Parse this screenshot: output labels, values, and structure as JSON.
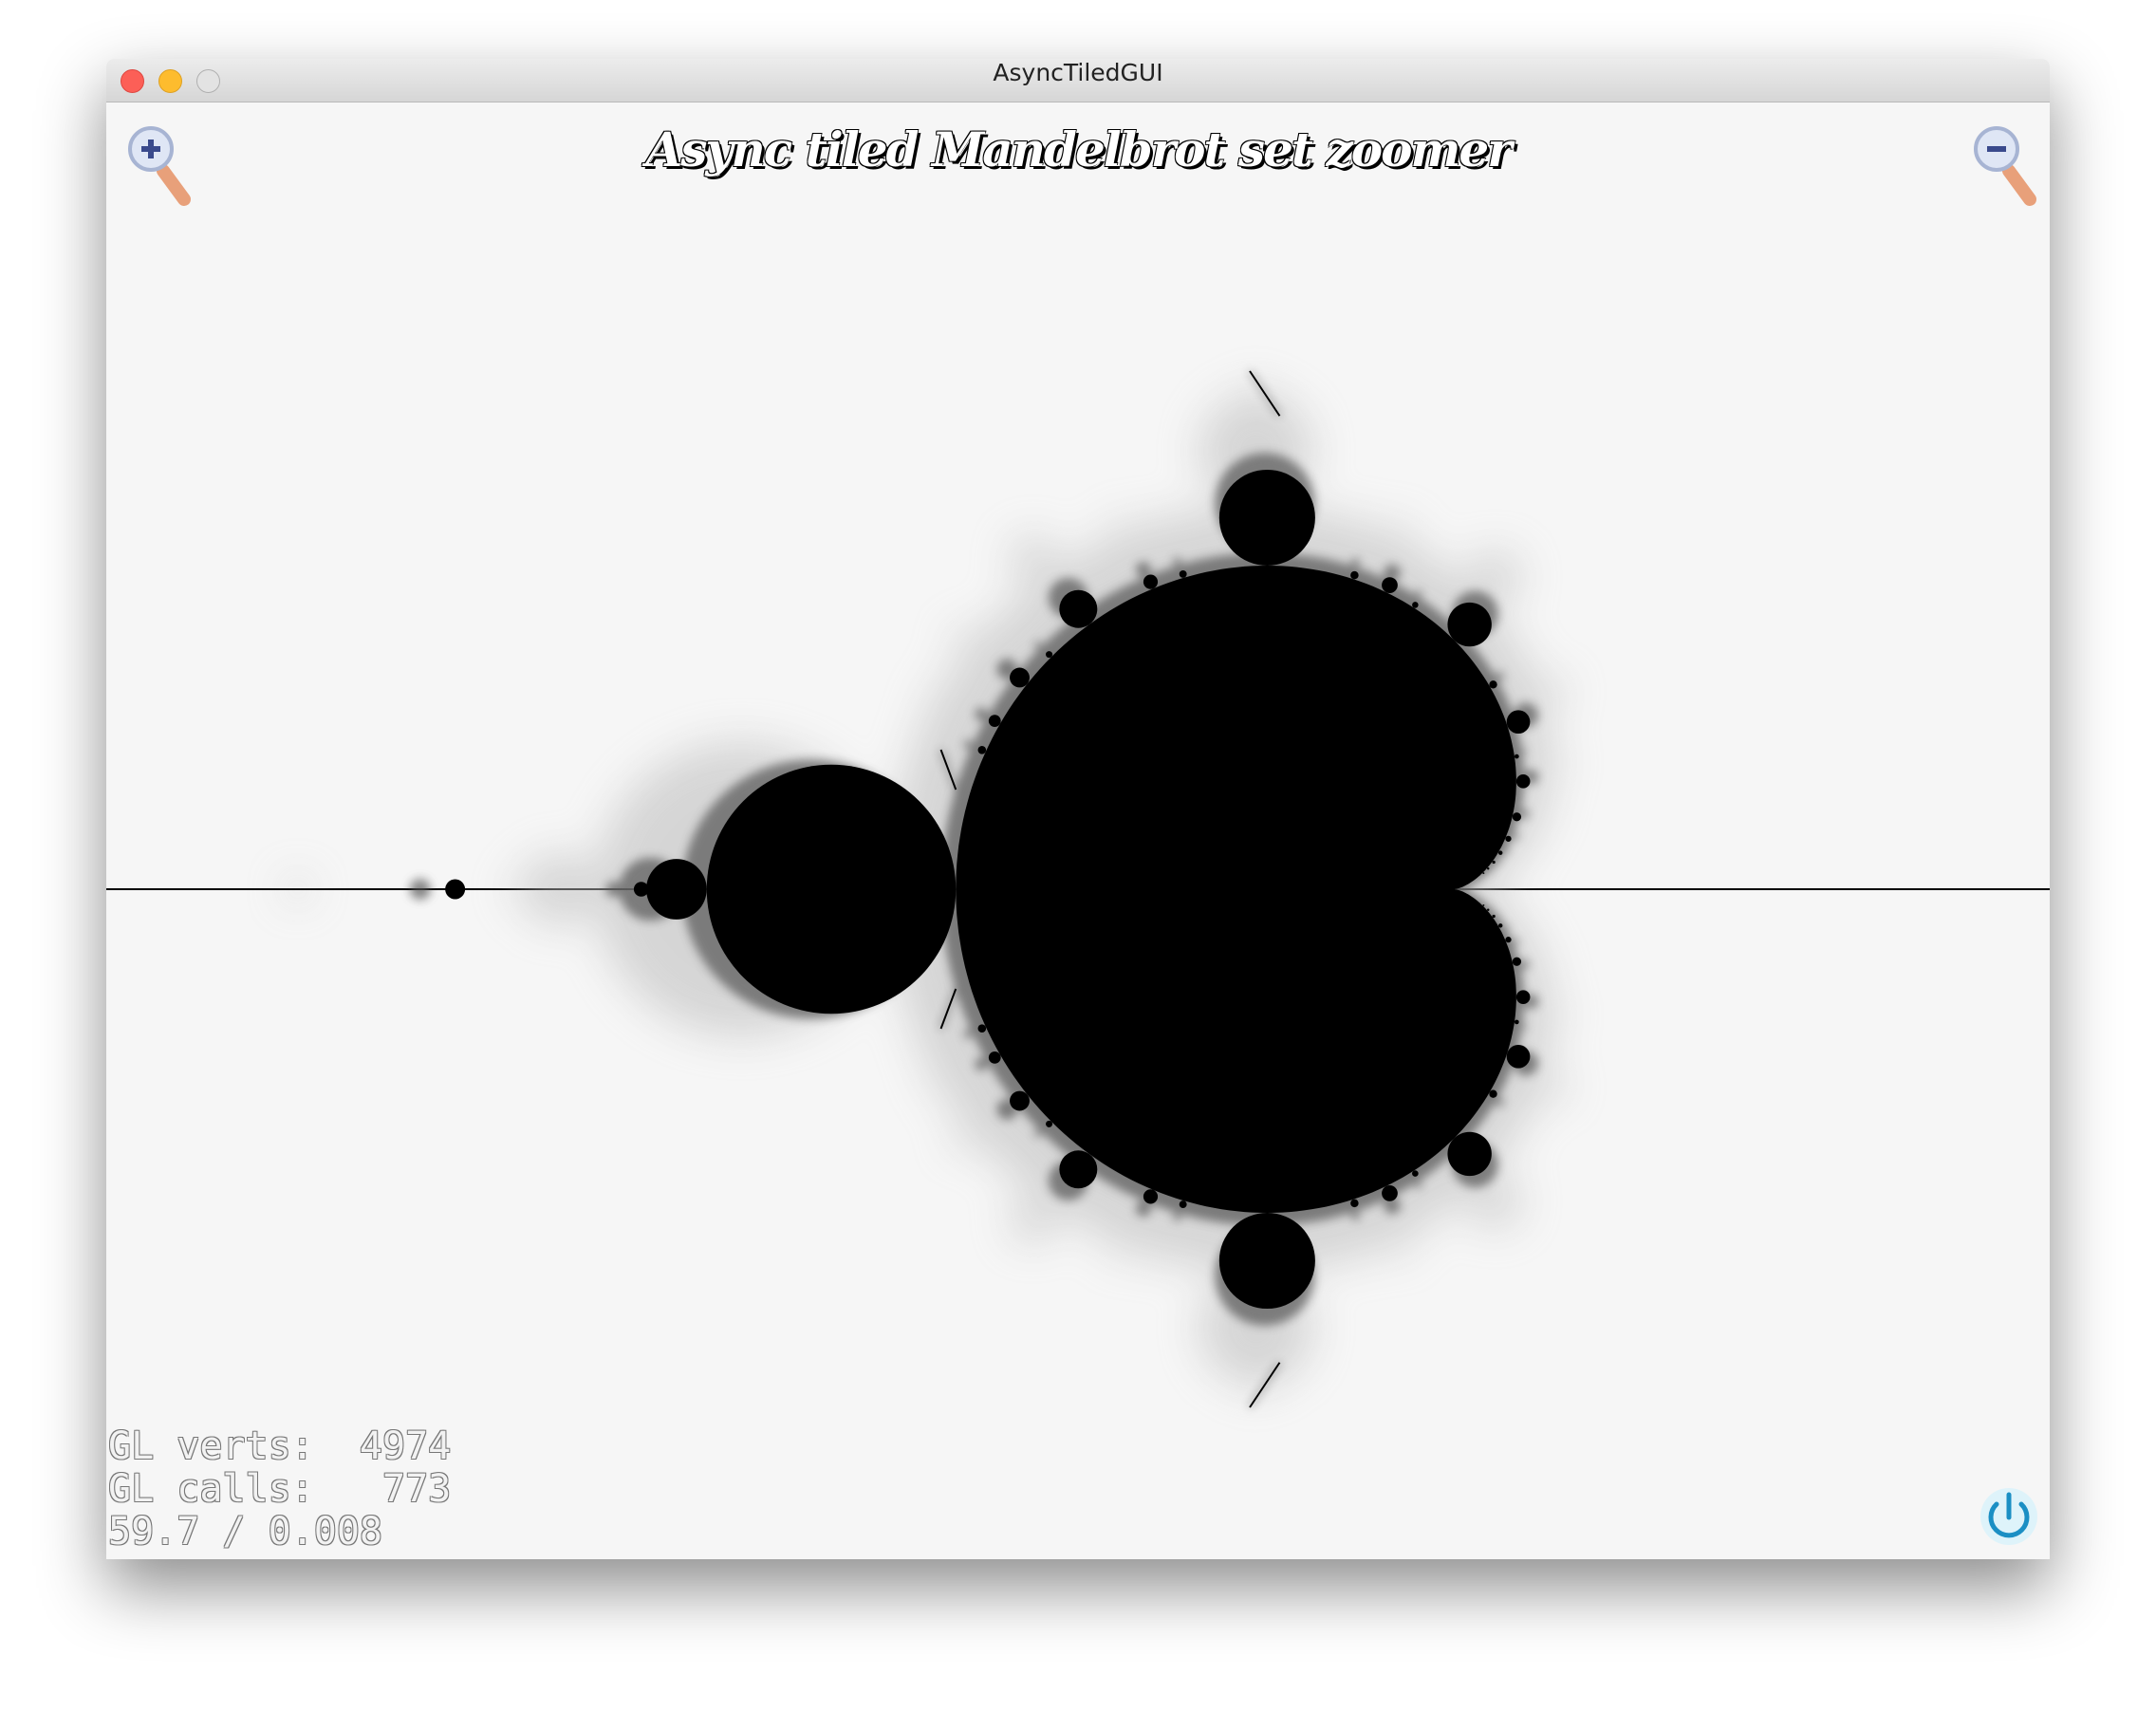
{
  "window": {
    "title": "AsyncTiledGUI"
  },
  "app": {
    "title": "Async tiled Mandelbrot set zoomer"
  },
  "stats": {
    "lines": [
      "GL verts:  4974",
      "GL calls:   773",
      "59.7 / 0.008"
    ]
  }
}
